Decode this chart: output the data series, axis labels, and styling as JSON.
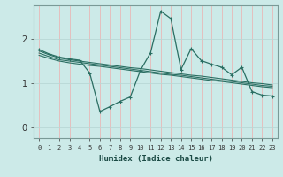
{
  "xlabel": "Humidex (Indice chaleur)",
  "x": [
    0,
    1,
    2,
    3,
    4,
    5,
    6,
    7,
    8,
    9,
    10,
    11,
    12,
    13,
    14,
    15,
    16,
    17,
    18,
    19,
    20,
    21,
    22,
    23
  ],
  "line1": [
    1.75,
    1.65,
    1.58,
    1.54,
    1.51,
    1.22,
    0.35,
    0.46,
    0.58,
    0.68,
    1.28,
    1.68,
    2.62,
    2.45,
    1.3,
    1.77,
    1.5,
    1.42,
    1.35,
    1.18,
    1.35,
    0.8,
    0.72,
    0.7
  ],
  "line2": [
    1.72,
    1.63,
    1.56,
    1.52,
    1.49,
    1.46,
    1.43,
    1.4,
    1.37,
    1.34,
    1.32,
    1.29,
    1.26,
    1.23,
    1.2,
    1.17,
    1.15,
    1.12,
    1.09,
    1.06,
    1.03,
    1.0,
    0.98,
    0.95
  ],
  "line3": [
    1.67,
    1.59,
    1.52,
    1.49,
    1.46,
    1.43,
    1.4,
    1.37,
    1.34,
    1.31,
    1.28,
    1.25,
    1.22,
    1.19,
    1.17,
    1.14,
    1.11,
    1.08,
    1.05,
    1.03,
    1.0,
    0.97,
    0.94,
    0.92
  ],
  "line4": [
    1.62,
    1.55,
    1.49,
    1.45,
    1.42,
    1.39,
    1.37,
    1.34,
    1.31,
    1.28,
    1.25,
    1.22,
    1.19,
    1.17,
    1.14,
    1.11,
    1.08,
    1.05,
    1.03,
    1.0,
    0.97,
    0.94,
    0.91,
    0.89
  ],
  "color": "#2a6e62",
  "bg_color": "#cceae8",
  "grid_color_h": "#b8d8d5",
  "grid_color_v": "#e8b8b8",
  "ylim": [
    -0.25,
    2.75
  ],
  "yticks": [
    0,
    1,
    2
  ],
  "xlim": [
    -0.5,
    23.5
  ]
}
